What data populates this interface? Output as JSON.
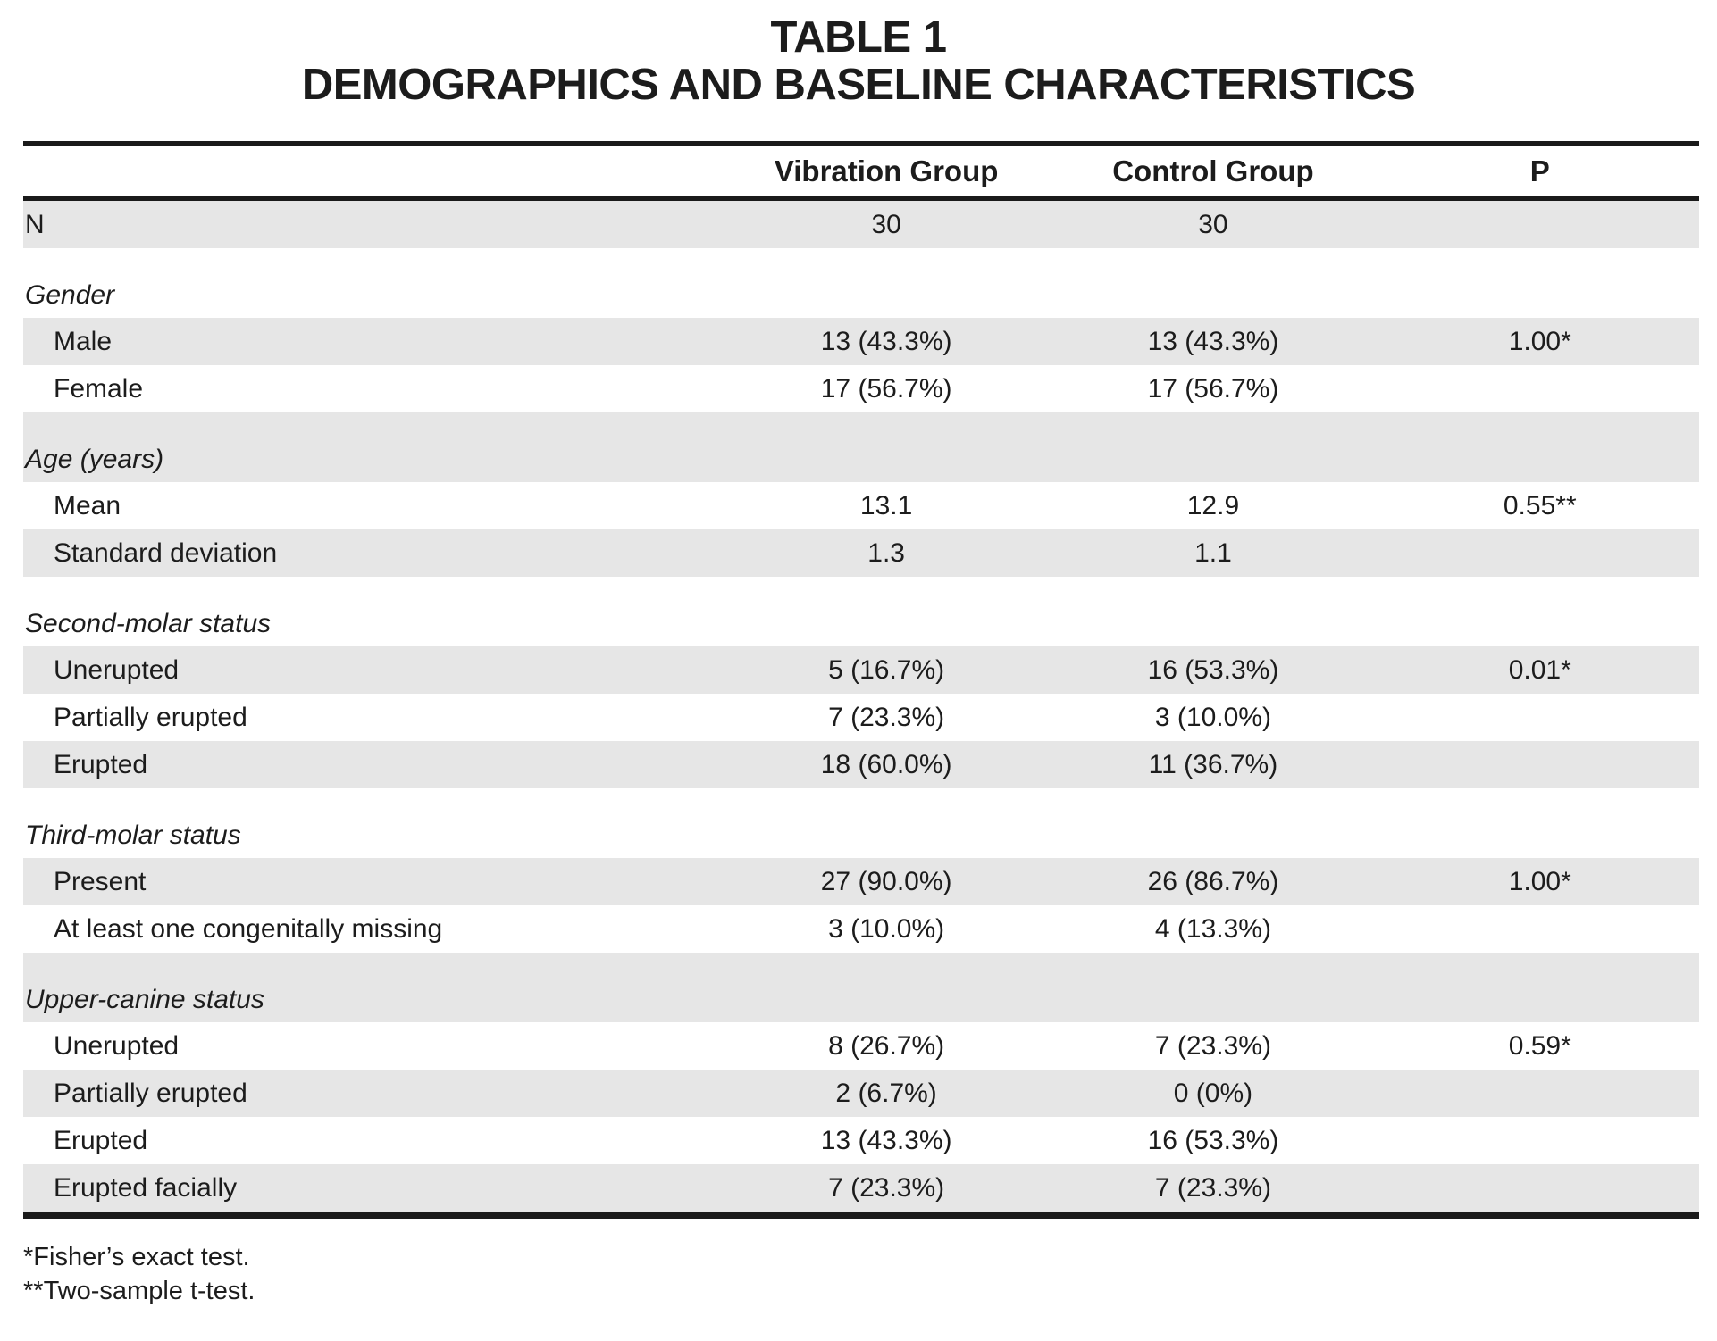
{
  "title": {
    "line1": "TABLE 1",
    "line2": "DEMOGRAPHICS AND BASELINE CHARACTERISTICS"
  },
  "columns": {
    "label": "",
    "vibration": "Vibration Group",
    "control": "Control Group",
    "p": "P"
  },
  "rows": [
    {
      "type": "data",
      "label": "N",
      "vibration": "30",
      "control": "30",
      "p": ""
    },
    {
      "type": "section",
      "label": "Gender"
    },
    {
      "type": "data",
      "label": "Male",
      "vibration": "13 (43.3%)",
      "control": "13 (43.3%)",
      "p": "1.00*"
    },
    {
      "type": "data",
      "label": "Female",
      "vibration": "17 (56.7%)",
      "control": "17 (56.7%)",
      "p": ""
    },
    {
      "type": "section",
      "label": "Age (years)"
    },
    {
      "type": "data",
      "label": "Mean",
      "vibration": "13.1",
      "control": "12.9",
      "p": "0.55**"
    },
    {
      "type": "data",
      "label": "Standard deviation",
      "vibration": "1.3",
      "control": "1.1",
      "p": ""
    },
    {
      "type": "section",
      "label": "Second-molar status"
    },
    {
      "type": "data",
      "label": "Unerupted",
      "vibration": "5 (16.7%)",
      "control": "16 (53.3%)",
      "p": "0.01*"
    },
    {
      "type": "data",
      "label": "Partially erupted",
      "vibration": "7 (23.3%)",
      "control": "3 (10.0%)",
      "p": ""
    },
    {
      "type": "data",
      "label": "Erupted",
      "vibration": "18 (60.0%)",
      "control": "11 (36.7%)",
      "p": ""
    },
    {
      "type": "section",
      "label": "Third-molar status"
    },
    {
      "type": "data",
      "label": "Present",
      "vibration": "27 (90.0%)",
      "control": "26 (86.7%)",
      "p": "1.00*"
    },
    {
      "type": "data",
      "label": "At least one congenitally missing",
      "vibration": "3 (10.0%)",
      "control": "4 (13.3%)",
      "p": ""
    },
    {
      "type": "section",
      "label": "Upper-canine status"
    },
    {
      "type": "data",
      "label": "Unerupted",
      "vibration": "8 (26.7%)",
      "control": "7 (23.3%)",
      "p": "0.59*"
    },
    {
      "type": "data",
      "label": "Partially erupted",
      "vibration": "2 (6.7%)",
      "control": "0 (0%)",
      "p": ""
    },
    {
      "type": "data",
      "label": "Erupted",
      "vibration": "13 (43.3%)",
      "control": "16 (53.3%)",
      "p": ""
    },
    {
      "type": "data",
      "label": "Erupted facially",
      "vibration": "7 (23.3%)",
      "control": "7 (23.3%)",
      "p": ""
    }
  ],
  "footnotes": [
    "*Fisher’s exact test.",
    "**Two-sample t-test."
  ],
  "colors": {
    "stripe": "#e6e6e6",
    "ink": "#1c1c1c",
    "rule": "#1a1a1a",
    "paper": "#ffffff"
  }
}
